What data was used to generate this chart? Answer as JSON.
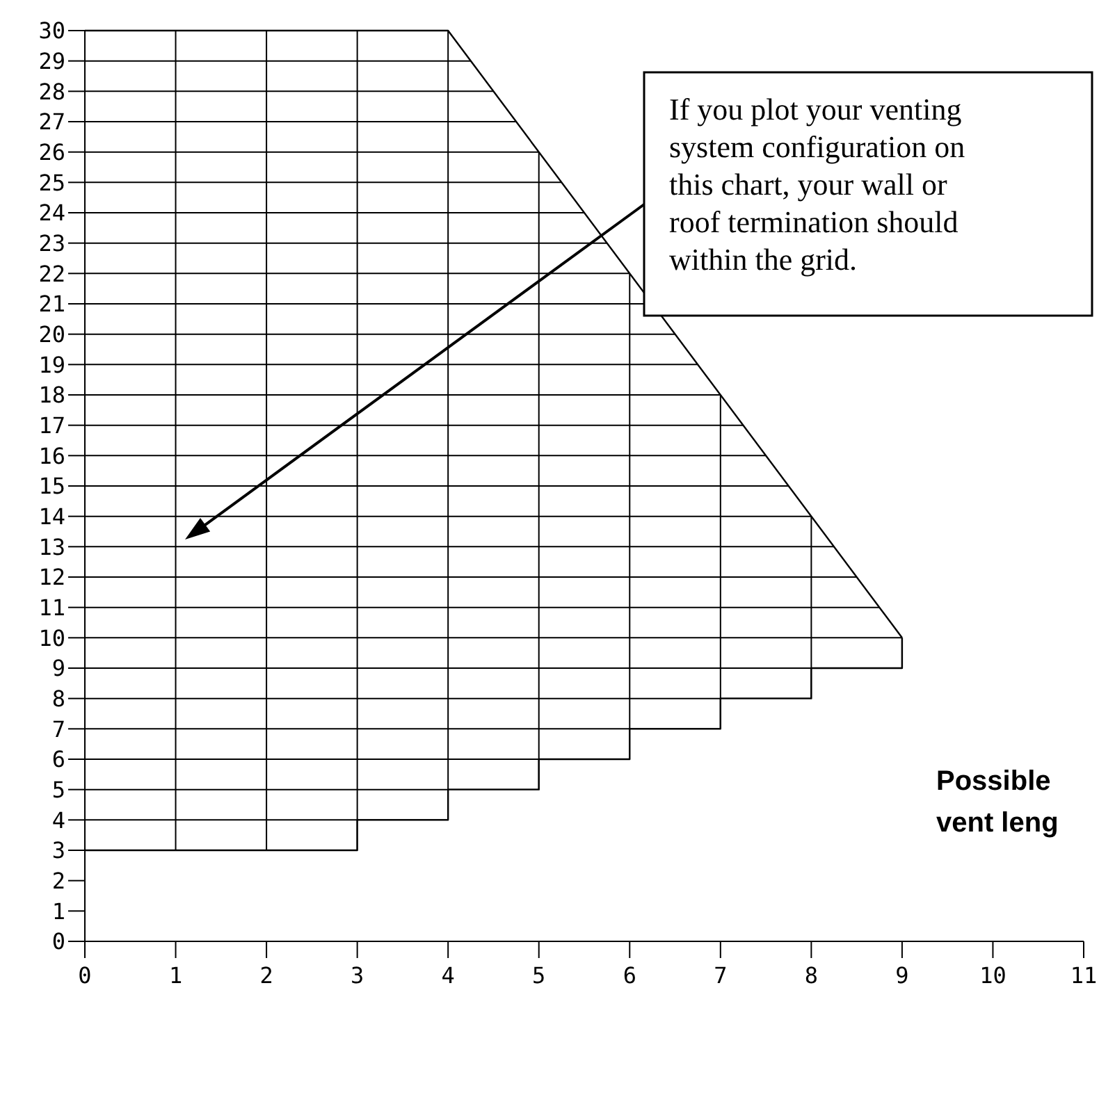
{
  "chart_data": {
    "type": "line",
    "series": [
      {
        "color": "#000000",
        "x": [
          0,
          4,
          9
        ],
        "values": [
          30,
          30,
          10
        ]
      },
      {
        "type": "step",
        "color": "#000000",
        "x": [
          0,
          3,
          4,
          5,
          6,
          7,
          8,
          9,
          9
        ],
        "values": [
          3,
          4,
          5,
          6,
          7,
          8,
          9,
          9,
          10
        ]
      }
    ],
    "xlim": [
      0,
      11
    ],
    "xticks": [
      0,
      1,
      2,
      3,
      4,
      5,
      6,
      7,
      8,
      9,
      10,
      11
    ],
    "ylim": [
      0,
      30
    ],
    "yticks": [
      0,
      1,
      2,
      3,
      4,
      5,
      6,
      7,
      8,
      9,
      10,
      11,
      12,
      13,
      14,
      15,
      16,
      17,
      18,
      19,
      20,
      21,
      22,
      23,
      24,
      25,
      26,
      27,
      28,
      29,
      30
    ],
    "grid": true,
    "marker": "none",
    "line_style": "solid",
    "annotations": [
      {
        "text": "If you plot your venting system configuration on this chart, your wall or roof termination should within the grid."
      },
      "Possible vent leng"
    ]
  }
}
